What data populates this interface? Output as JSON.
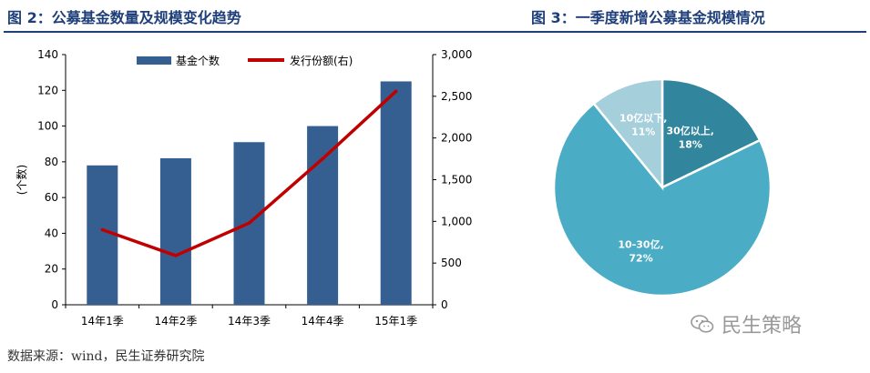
{
  "titles": {
    "left": "图 2：公募基金数量及规模变化趋势",
    "right": "图 3：一季度新增公募基金规模情况"
  },
  "source": "数据来源：wind，民生证券研究院",
  "watermark": "民生策略",
  "watermark_icon": "wechat-icon",
  "colors": {
    "bar": "#365f91",
    "line": "#c00000",
    "title": "#1f3f7a",
    "pie_large": "#4bacc6",
    "pie_dark": "#31859c",
    "pie_light": "#a6cfdc"
  },
  "chart_data": [
    {
      "type": "bar",
      "categories": [
        "14年1季",
        "14年2季",
        "14年3季",
        "14年4季",
        "15年1季"
      ],
      "series": [
        {
          "name": "基金个数",
          "type": "bar",
          "axis": "left",
          "values": [
            78,
            82,
            91,
            100,
            125
          ]
        },
        {
          "name": "发行份额(右)",
          "type": "line",
          "axis": "right",
          "values": [
            900,
            590,
            980,
            1750,
            2560
          ]
        }
      ],
      "ylabel": "(个数)",
      "ylim": [
        0,
        140
      ],
      "yticks": [
        "0",
        "20",
        "40",
        "60",
        "80",
        "100",
        "120",
        "140"
      ],
      "y2lim": [
        0,
        3000
      ],
      "y2ticks": [
        "0",
        "500",
        "1,000",
        "1,500",
        "2,000",
        "2,500",
        "3,000"
      ],
      "legend": "top",
      "grid": false
    },
    {
      "type": "pie",
      "slices": [
        {
          "label": "30亿以上,",
          "pct": "18%",
          "value": 18
        },
        {
          "label": "10-30亿,",
          "pct": "72%",
          "value": 72
        },
        {
          "label": "10亿以下,",
          "pct": "11%",
          "value": 11
        }
      ]
    }
  ]
}
